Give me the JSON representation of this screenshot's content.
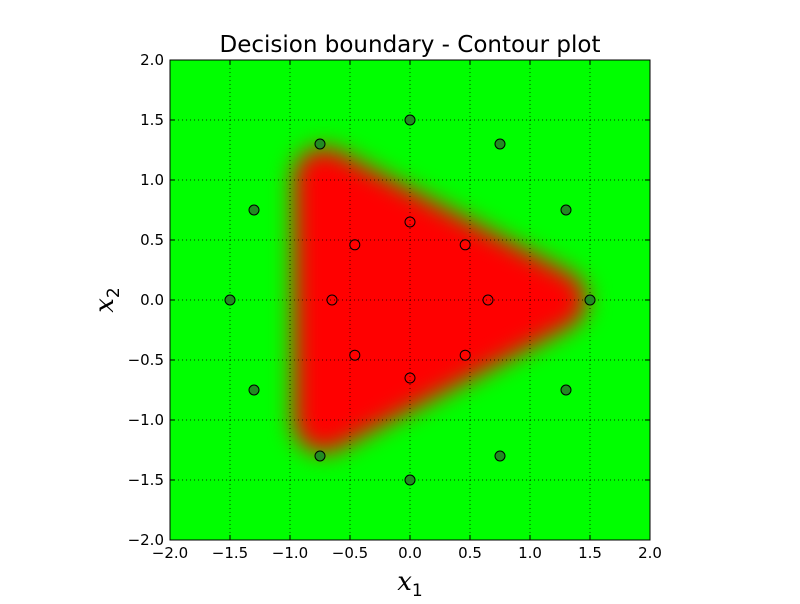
{
  "chart_data": {
    "type": "scatter",
    "title": "Decision boundary - Contour plot",
    "xlabel": "x",
    "xlabel_sub": "1",
    "ylabel": "x",
    "ylabel_sub": "2",
    "xlim": [
      -2.0,
      2.0
    ],
    "ylim": [
      -2.0,
      2.0
    ],
    "xticks": [
      -2.0,
      -1.5,
      -1.0,
      -0.5,
      0.0,
      0.5,
      1.0,
      1.5,
      2.0
    ],
    "yticks": [
      -2.0,
      -1.5,
      -1.0,
      -0.5,
      0.0,
      0.5,
      1.0,
      1.5,
      2.0
    ],
    "xtick_labels": [
      "−2.0",
      "−1.5",
      "−1.0",
      "−0.5",
      "0.0",
      "0.5",
      "1.0",
      "1.5",
      "2.0"
    ],
    "ytick_labels": [
      "−2.0",
      "−1.5",
      "−1.0",
      "−0.5",
      "0.0",
      "0.5",
      "1.0",
      "1.5",
      "2.0"
    ],
    "grid": true,
    "background_color": "#00ff00",
    "region_color": "#ff0000",
    "region_vertices": [
      [
        -0.72,
        1.02
      ],
      [
        -0.72,
        -1.02
      ],
      [
        1.22,
        0.0
      ]
    ],
    "series": [
      {
        "marker_face": "#228b22",
        "marker_edge": "#000000",
        "points": [
          [
            0.0,
            1.5
          ],
          [
            0.75,
            1.3
          ],
          [
            1.3,
            0.75
          ],
          [
            1.5,
            0.0
          ],
          [
            1.3,
            -0.75
          ],
          [
            0.75,
            -1.3
          ],
          [
            0.0,
            -1.5
          ],
          [
            -0.75,
            -1.3
          ],
          [
            -1.3,
            -0.75
          ],
          [
            -1.5,
            0.0
          ],
          [
            -1.3,
            0.75
          ],
          [
            -0.75,
            1.3
          ]
        ]
      },
      {
        "marker_face": "none",
        "marker_edge": "#000000",
        "points": [
          [
            0.0,
            0.65
          ],
          [
            0.46,
            0.46
          ],
          [
            0.65,
            0.0
          ],
          [
            0.46,
            -0.46
          ],
          [
            0.0,
            -0.65
          ],
          [
            -0.46,
            -0.46
          ],
          [
            -0.65,
            0.0
          ],
          [
            -0.46,
            0.46
          ]
        ]
      }
    ]
  }
}
